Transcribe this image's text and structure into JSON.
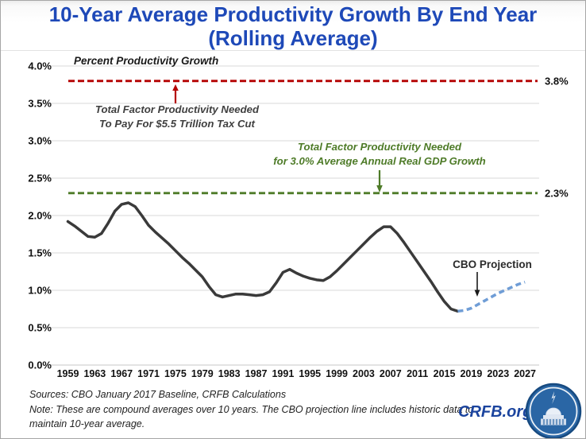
{
  "title": {
    "line1": "10-Year Average Productivity Growth By End Year",
    "line2": "(Rolling Average)"
  },
  "chart_data": {
    "type": "line",
    "inner_label": "Percent Productivity Growth",
    "ylim": [
      0,
      4.0
    ],
    "grid": "horizontal",
    "ytick_values": [
      0,
      0.5,
      1.0,
      1.5,
      2.0,
      2.5,
      3.0,
      3.5,
      4.0
    ],
    "ytick_labels": [
      "0.0%",
      "0.5%",
      "1.0%",
      "1.5%",
      "2.0%",
      "2.5%",
      "3.0%",
      "3.5%",
      "4.0%"
    ],
    "xticks": [
      1959,
      1963,
      1967,
      1971,
      1975,
      1979,
      1983,
      1987,
      1991,
      1995,
      1999,
      2003,
      2007,
      2011,
      2015,
      2019,
      2023,
      2027
    ],
    "series": [
      {
        "name": "historical",
        "color": "#3a3a3a",
        "line_style": "solid",
        "x": [
          1959,
          1960,
          1961,
          1962,
          1963,
          1964,
          1965,
          1966,
          1967,
          1968,
          1969,
          1970,
          1971,
          1972,
          1973,
          1974,
          1975,
          1976,
          1977,
          1978,
          1979,
          1980,
          1981,
          1982,
          1983,
          1984,
          1985,
          1986,
          1987,
          1988,
          1989,
          1990,
          1991,
          1992,
          1993,
          1994,
          1995,
          1996,
          1997,
          1998,
          1999,
          2000,
          2001,
          2002,
          2003,
          2004,
          2005,
          2006,
          2007,
          2008,
          2009,
          2010,
          2011,
          2012,
          2013,
          2014,
          2015,
          2016,
          2017
        ],
        "y": [
          1.92,
          1.86,
          1.79,
          1.72,
          1.71,
          1.76,
          1.9,
          2.06,
          2.15,
          2.17,
          2.12,
          2.0,
          1.87,
          1.78,
          1.7,
          1.62,
          1.53,
          1.44,
          1.36,
          1.27,
          1.18,
          1.05,
          0.94,
          0.91,
          0.93,
          0.95,
          0.95,
          0.94,
          0.93,
          0.94,
          0.98,
          1.1,
          1.24,
          1.28,
          1.23,
          1.19,
          1.16,
          1.14,
          1.13,
          1.18,
          1.26,
          1.35,
          1.44,
          1.53,
          1.62,
          1.71,
          1.79,
          1.85,
          1.85,
          1.76,
          1.64,
          1.51,
          1.38,
          1.25,
          1.12,
          0.98,
          0.85,
          0.75,
          0.72
        ]
      },
      {
        "name": "cbo-projection",
        "color": "#6f9dd6",
        "line_style": "dashed",
        "x": [
          2017,
          2018,
          2019,
          2020,
          2021,
          2022,
          2023,
          2024,
          2025,
          2026,
          2027
        ],
        "y": [
          0.72,
          0.73,
          0.76,
          0.81,
          0.86,
          0.91,
          0.96,
          1.0,
          1.04,
          1.08,
          1.11
        ]
      }
    ],
    "reference_lines": [
      {
        "value": 3.8,
        "right_label": "3.8%",
        "color": "#b40000",
        "style": "dashed",
        "annotation_lines": [
          "Total Factor Productivity Needed",
          "To Pay For $5.5 Trillion Tax Cut"
        ],
        "annotation_color": "#3f3f3f",
        "arrow": "up"
      },
      {
        "value": 2.3,
        "right_label": "2.3%",
        "color": "#4e7b28",
        "style": "dashed",
        "annotation_lines": [
          "Total Factor Productivity Needed",
          "for 3.0% Average Annual Real GDP Growth"
        ],
        "annotation_color": "#4e7b28",
        "arrow": "down"
      }
    ],
    "annotations": [
      {
        "text": "CBO Projection",
        "color": "#2b2b2b"
      }
    ]
  },
  "footer": {
    "sources": "Sources: CBO January 2017 Baseline, CRFB Calculations",
    "note": "Note: These are compound averages over 10 years. The CBO projection line includes historic data to maintain 10-year average.",
    "site": "CRFB.org",
    "logo_icon": "capitol-logo"
  }
}
